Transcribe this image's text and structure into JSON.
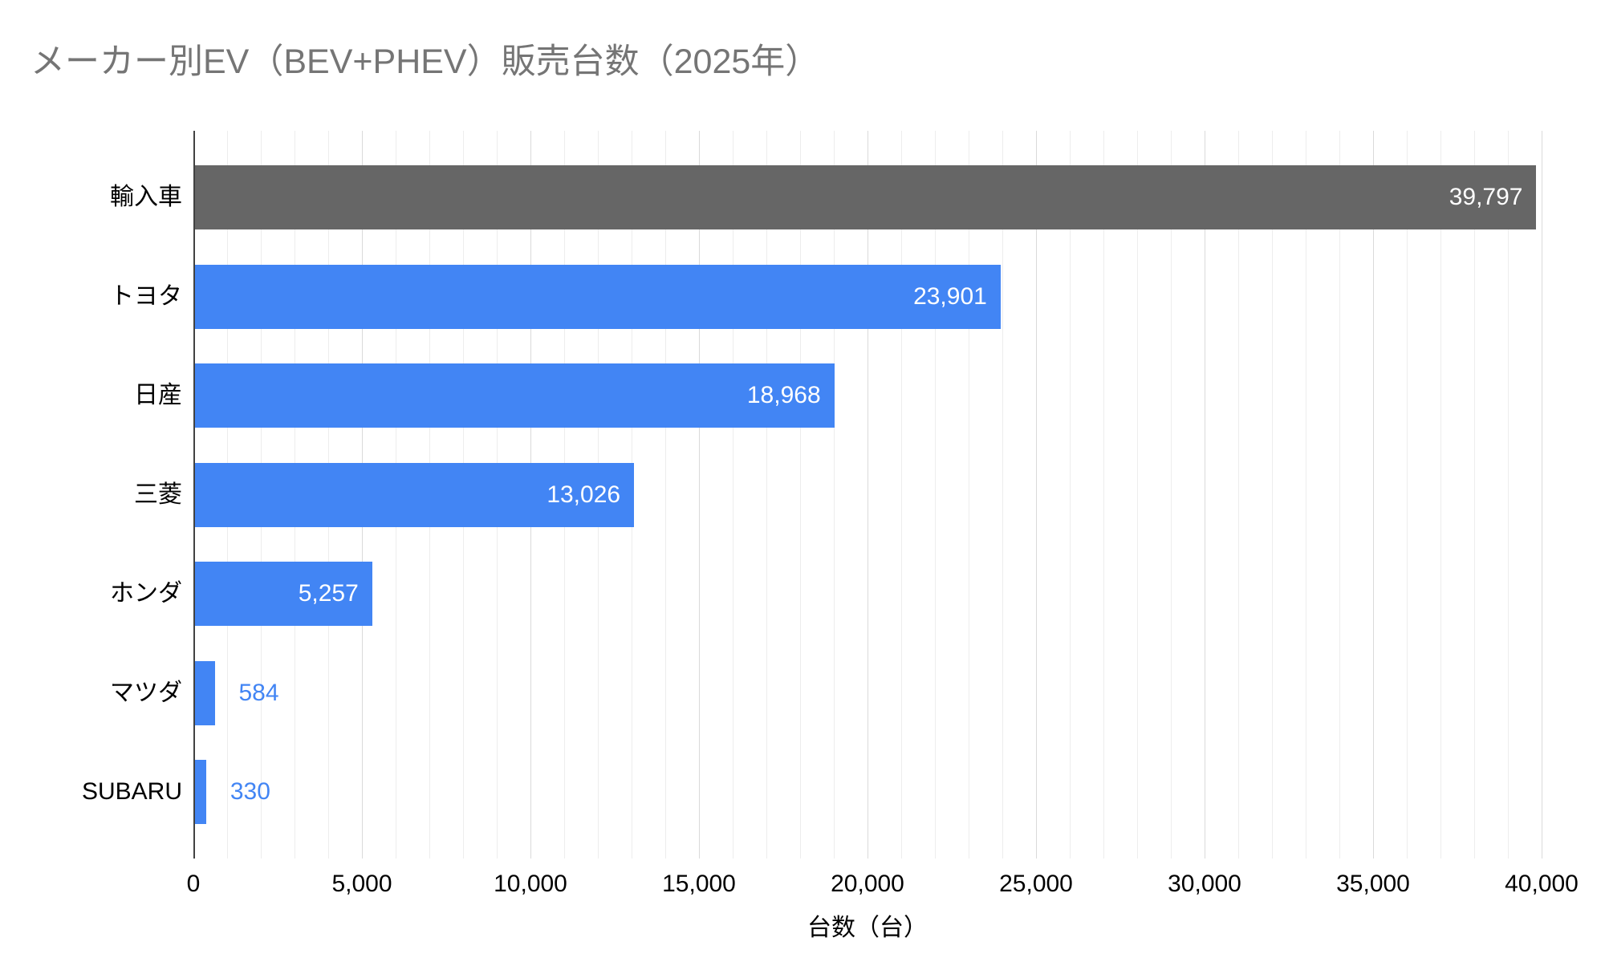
{
  "chart_data": {
    "type": "bar",
    "orientation": "horizontal",
    "title": "メーカー別EV（BEV+PHEV）販売台数（2025年）",
    "xlabel": "台数（台）",
    "categories": [
      "輸入車",
      "トヨタ",
      "日産",
      "三菱",
      "ホンダ",
      "マツダ",
      "SUBARU"
    ],
    "values": [
      39797,
      23901,
      18968,
      13026,
      5257,
      584,
      330
    ],
    "value_labels": [
      "39,797",
      "23,901",
      "18,968",
      "13,026",
      "5,257",
      "584",
      "330"
    ],
    "bar_colors": [
      "#666666",
      "#4285F4",
      "#4285F4",
      "#4285F4",
      "#4285F4",
      "#4285F4",
      "#4285F4"
    ],
    "xlim": [
      0,
      40000
    ],
    "x_tick_labels": [
      "0",
      "5,000",
      "10,000",
      "15,000",
      "20,000",
      "25,000",
      "30,000",
      "35,000",
      "40,000"
    ],
    "x_major_tick_interval": 5000,
    "x_minor_gridline_interval": 1000,
    "grid": true,
    "legend": "none",
    "colors": {
      "bar_blue": "#4285F4",
      "bar_gray": "#666666",
      "title_text": "#757575",
      "axis_line": "#424242",
      "major_gridline": "#DADADA",
      "minor_gridline": "#EDEDED",
      "inside_value_text": "#FFFFFF",
      "outside_value_text": "#4285F4",
      "label_text": "#000000",
      "background": "#FFFFFF"
    }
  }
}
